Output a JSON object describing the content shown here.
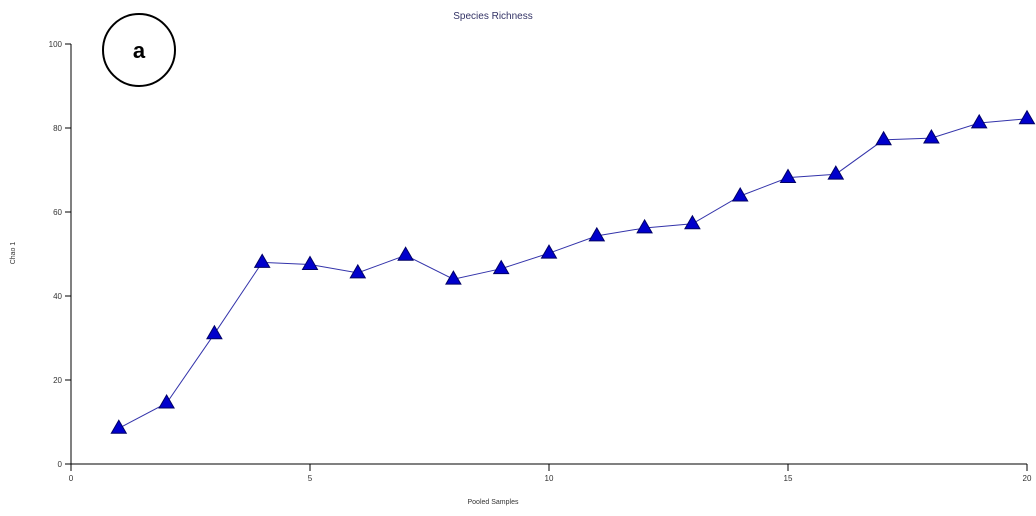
{
  "panel_label": "a",
  "chart_data": {
    "type": "line",
    "title": "Species Richness",
    "xlabel": "Pooled Samples",
    "ylabel": "Chao 1",
    "xlim": [
      0,
      20
    ],
    "ylim": [
      0,
      100
    ],
    "xticks": [
      0,
      5,
      10,
      15,
      20
    ],
    "yticks": [
      0,
      20,
      40,
      60,
      80,
      100
    ],
    "marker": "triangle",
    "colors": {
      "line": "#3333aa",
      "marker_fill": "#0000cc",
      "marker_stroke": "#000066"
    },
    "x": [
      1,
      2,
      3,
      4,
      5,
      6,
      7,
      8,
      9,
      10,
      11,
      12,
      13,
      14,
      15,
      16,
      17,
      18,
      19,
      20
    ],
    "y": [
      8.5,
      14.5,
      31,
      48,
      47.5,
      45.5,
      49.7,
      44,
      46.5,
      50.2,
      54.3,
      56.2,
      57.2,
      63.8,
      68.2,
      69,
      77.2,
      77.6,
      81.2,
      82.2
    ]
  }
}
